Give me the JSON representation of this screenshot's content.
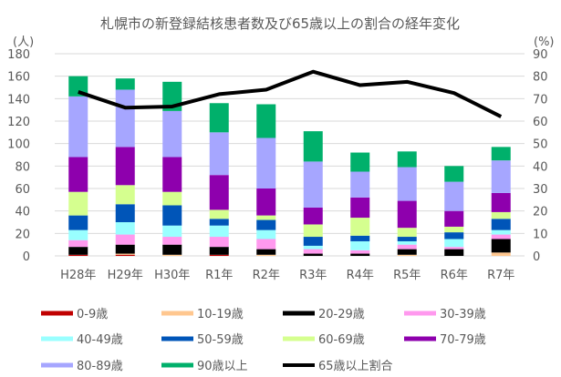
{
  "chart_data": {
    "type": "bar",
    "stacked": true,
    "title": "札幌市の新登録結核患者数及び65歳以上の割合の経年変化",
    "ylabel_left": "(人)",
    "ylabel_right": "(%)",
    "ylim_left": [
      0,
      180
    ],
    "ylim_right": [
      0,
      90
    ],
    "yticks_left": [
      0,
      20,
      40,
      60,
      80,
      100,
      120,
      140,
      160,
      180
    ],
    "yticks_right": [
      0,
      10,
      20,
      30,
      40,
      50,
      60,
      70,
      80,
      90
    ],
    "grid": true,
    "legend_position": "bottom",
    "categories": [
      "H28年",
      "H29年",
      "H30年",
      "R1年",
      "R2年",
      "R3年",
      "R4年",
      "R5年",
      "R6年",
      "R7年"
    ],
    "series": [
      {
        "name": "0-9歳",
        "color": "#c00000",
        "values": [
          1,
          1,
          0,
          1,
          0,
          0,
          0,
          0,
          0,
          0
        ]
      },
      {
        "name": "10-19歳",
        "color": "#ffc78f",
        "values": [
          0,
          1,
          1,
          0,
          1,
          0,
          0,
          1,
          0,
          3
        ]
      },
      {
        "name": "20-29歳",
        "color": "#000000",
        "values": [
          7,
          8,
          9,
          7,
          5,
          2,
          2,
          5,
          6,
          12
        ]
      },
      {
        "name": "30-39歳",
        "color": "#ff99ee",
        "values": [
          6,
          9,
          7,
          9,
          9,
          4,
          3,
          4,
          2,
          4
        ]
      },
      {
        "name": "40-49歳",
        "color": "#99ffff",
        "values": [
          9,
          11,
          10,
          10,
          8,
          3,
          8,
          3,
          7,
          4
        ]
      },
      {
        "name": "50-59歳",
        "color": "#0055b8",
        "values": [
          13,
          16,
          18,
          6,
          9,
          8,
          5,
          4,
          6,
          10
        ]
      },
      {
        "name": "60-69歳",
        "color": "#d5ff8f",
        "values": [
          21,
          17,
          12,
          8,
          4,
          11,
          16,
          8,
          5,
          6
        ]
      },
      {
        "name": "70-79歳",
        "color": "#8e00ad",
        "values": [
          31,
          34,
          31,
          31,
          24,
          15,
          18,
          24,
          14,
          17
        ]
      },
      {
        "name": "80-89歳",
        "color": "#a6a6ff",
        "values": [
          54,
          51,
          41,
          38,
          45,
          41,
          23,
          30,
          26,
          29
        ]
      },
      {
        "name": "90歳以上",
        "color": "#00b06b",
        "values": [
          18,
          10,
          26,
          26,
          30,
          27,
          17,
          14,
          14,
          12
        ]
      }
    ],
    "line": {
      "name": "65歳以上割合",
      "color": "#000000",
      "axis": "right",
      "values": [
        73,
        66,
        66.5,
        72,
        74,
        82,
        76,
        77.5,
        72.5,
        62
      ]
    }
  }
}
